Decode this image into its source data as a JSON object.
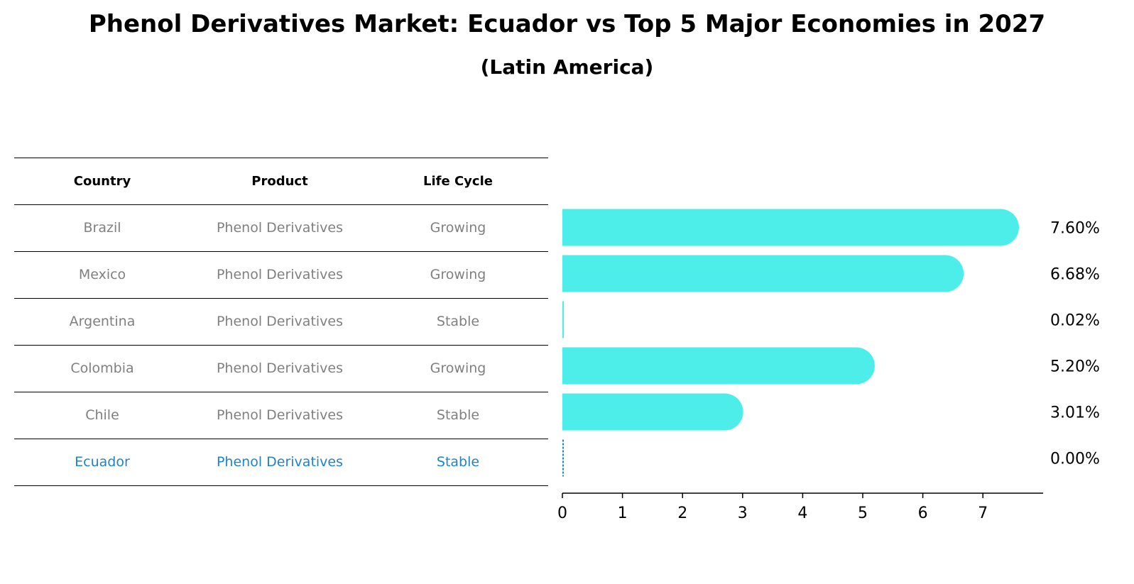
{
  "title": "Phenol Derivatives Market: Ecuador vs Top 5 Major Economies in 2027",
  "subtitle": "(Latin America)",
  "table": {
    "headers": [
      "Country",
      "Product",
      "Life Cycle"
    ],
    "rows": [
      [
        "Brazil",
        "Phenol Derivatives",
        "Growing"
      ],
      [
        "Mexico",
        "Phenol Derivatives",
        "Growing"
      ],
      [
        "Argentina",
        "Phenol Derivatives",
        "Stable"
      ],
      [
        "Colombia",
        "Phenol Derivatives",
        "Growing"
      ],
      [
        "Chile",
        "Phenol Derivatives",
        "Stable"
      ],
      [
        "Ecuador",
        "Phenol Derivatives",
        "Stable"
      ]
    ],
    "highlight_color": "#1f83c9",
    "text_color": "#808080"
  },
  "chart_data": {
    "type": "bar",
    "orientation": "horizontal",
    "categories": [
      "Brazil",
      "Mexico",
      "Argentina",
      "Colombia",
      "Chile",
      "Ecuador"
    ],
    "values": [
      7.6,
      6.68,
      0.02,
      5.2,
      3.01,
      0.0
    ],
    "value_labels": [
      "7.60%",
      "6.68%",
      "0.02%",
      "5.20%",
      "3.01%",
      "0.00%"
    ],
    "xlim": [
      0,
      8
    ],
    "xticks": [
      "0",
      "1",
      "2",
      "3",
      "4",
      "5",
      "6",
      "7"
    ],
    "bar_color": "#4deeea",
    "highlight_color": "#1f83c9",
    "grid": false
  }
}
